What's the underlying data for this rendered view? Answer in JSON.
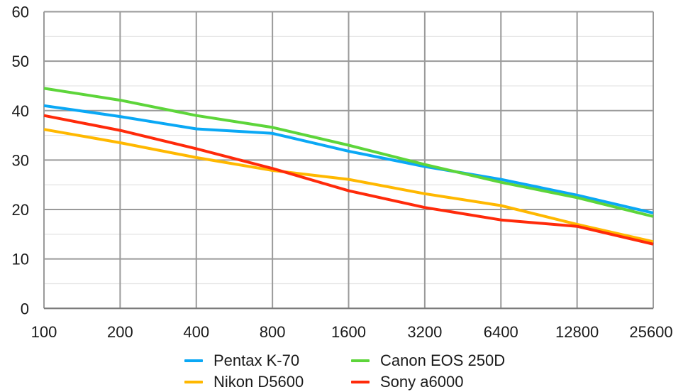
{
  "chart_data": {
    "type": "line",
    "title": "",
    "xlabel": "",
    "ylabel": "",
    "x": [
      "100",
      "200",
      "400",
      "800",
      "1600",
      "3200",
      "6400",
      "12800",
      "25600"
    ],
    "ylim": [
      0,
      60
    ],
    "yticks": [
      "0",
      "10",
      "20",
      "30",
      "40",
      "50",
      "60"
    ],
    "ytick_values": [
      0,
      10,
      20,
      30,
      40,
      50,
      60
    ],
    "minor_grid_step": 5,
    "grid": true,
    "legend_position": "bottom",
    "series": [
      {
        "name": "Pentax K-70",
        "color": "#0AA8F5",
        "values": [
          41.0,
          38.8,
          36.3,
          35.4,
          31.8,
          28.7,
          26.1,
          22.9,
          19.3
        ]
      },
      {
        "name": "Canon EOS 250D",
        "color": "#5DD53A",
        "values": [
          44.5,
          42.1,
          39.0,
          36.6,
          33.0,
          29.1,
          25.5,
          22.4,
          18.6
        ]
      },
      {
        "name": "Nikon D5600",
        "color": "#FFB800",
        "values": [
          36.2,
          33.5,
          30.5,
          27.9,
          26.1,
          23.2,
          20.8,
          17.0,
          13.5
        ]
      },
      {
        "name": "Sony a6000",
        "color": "#FF2A0A",
        "values": [
          39.0,
          36.0,
          32.3,
          28.3,
          23.8,
          20.4,
          17.9,
          16.6,
          13.0
        ]
      }
    ]
  }
}
